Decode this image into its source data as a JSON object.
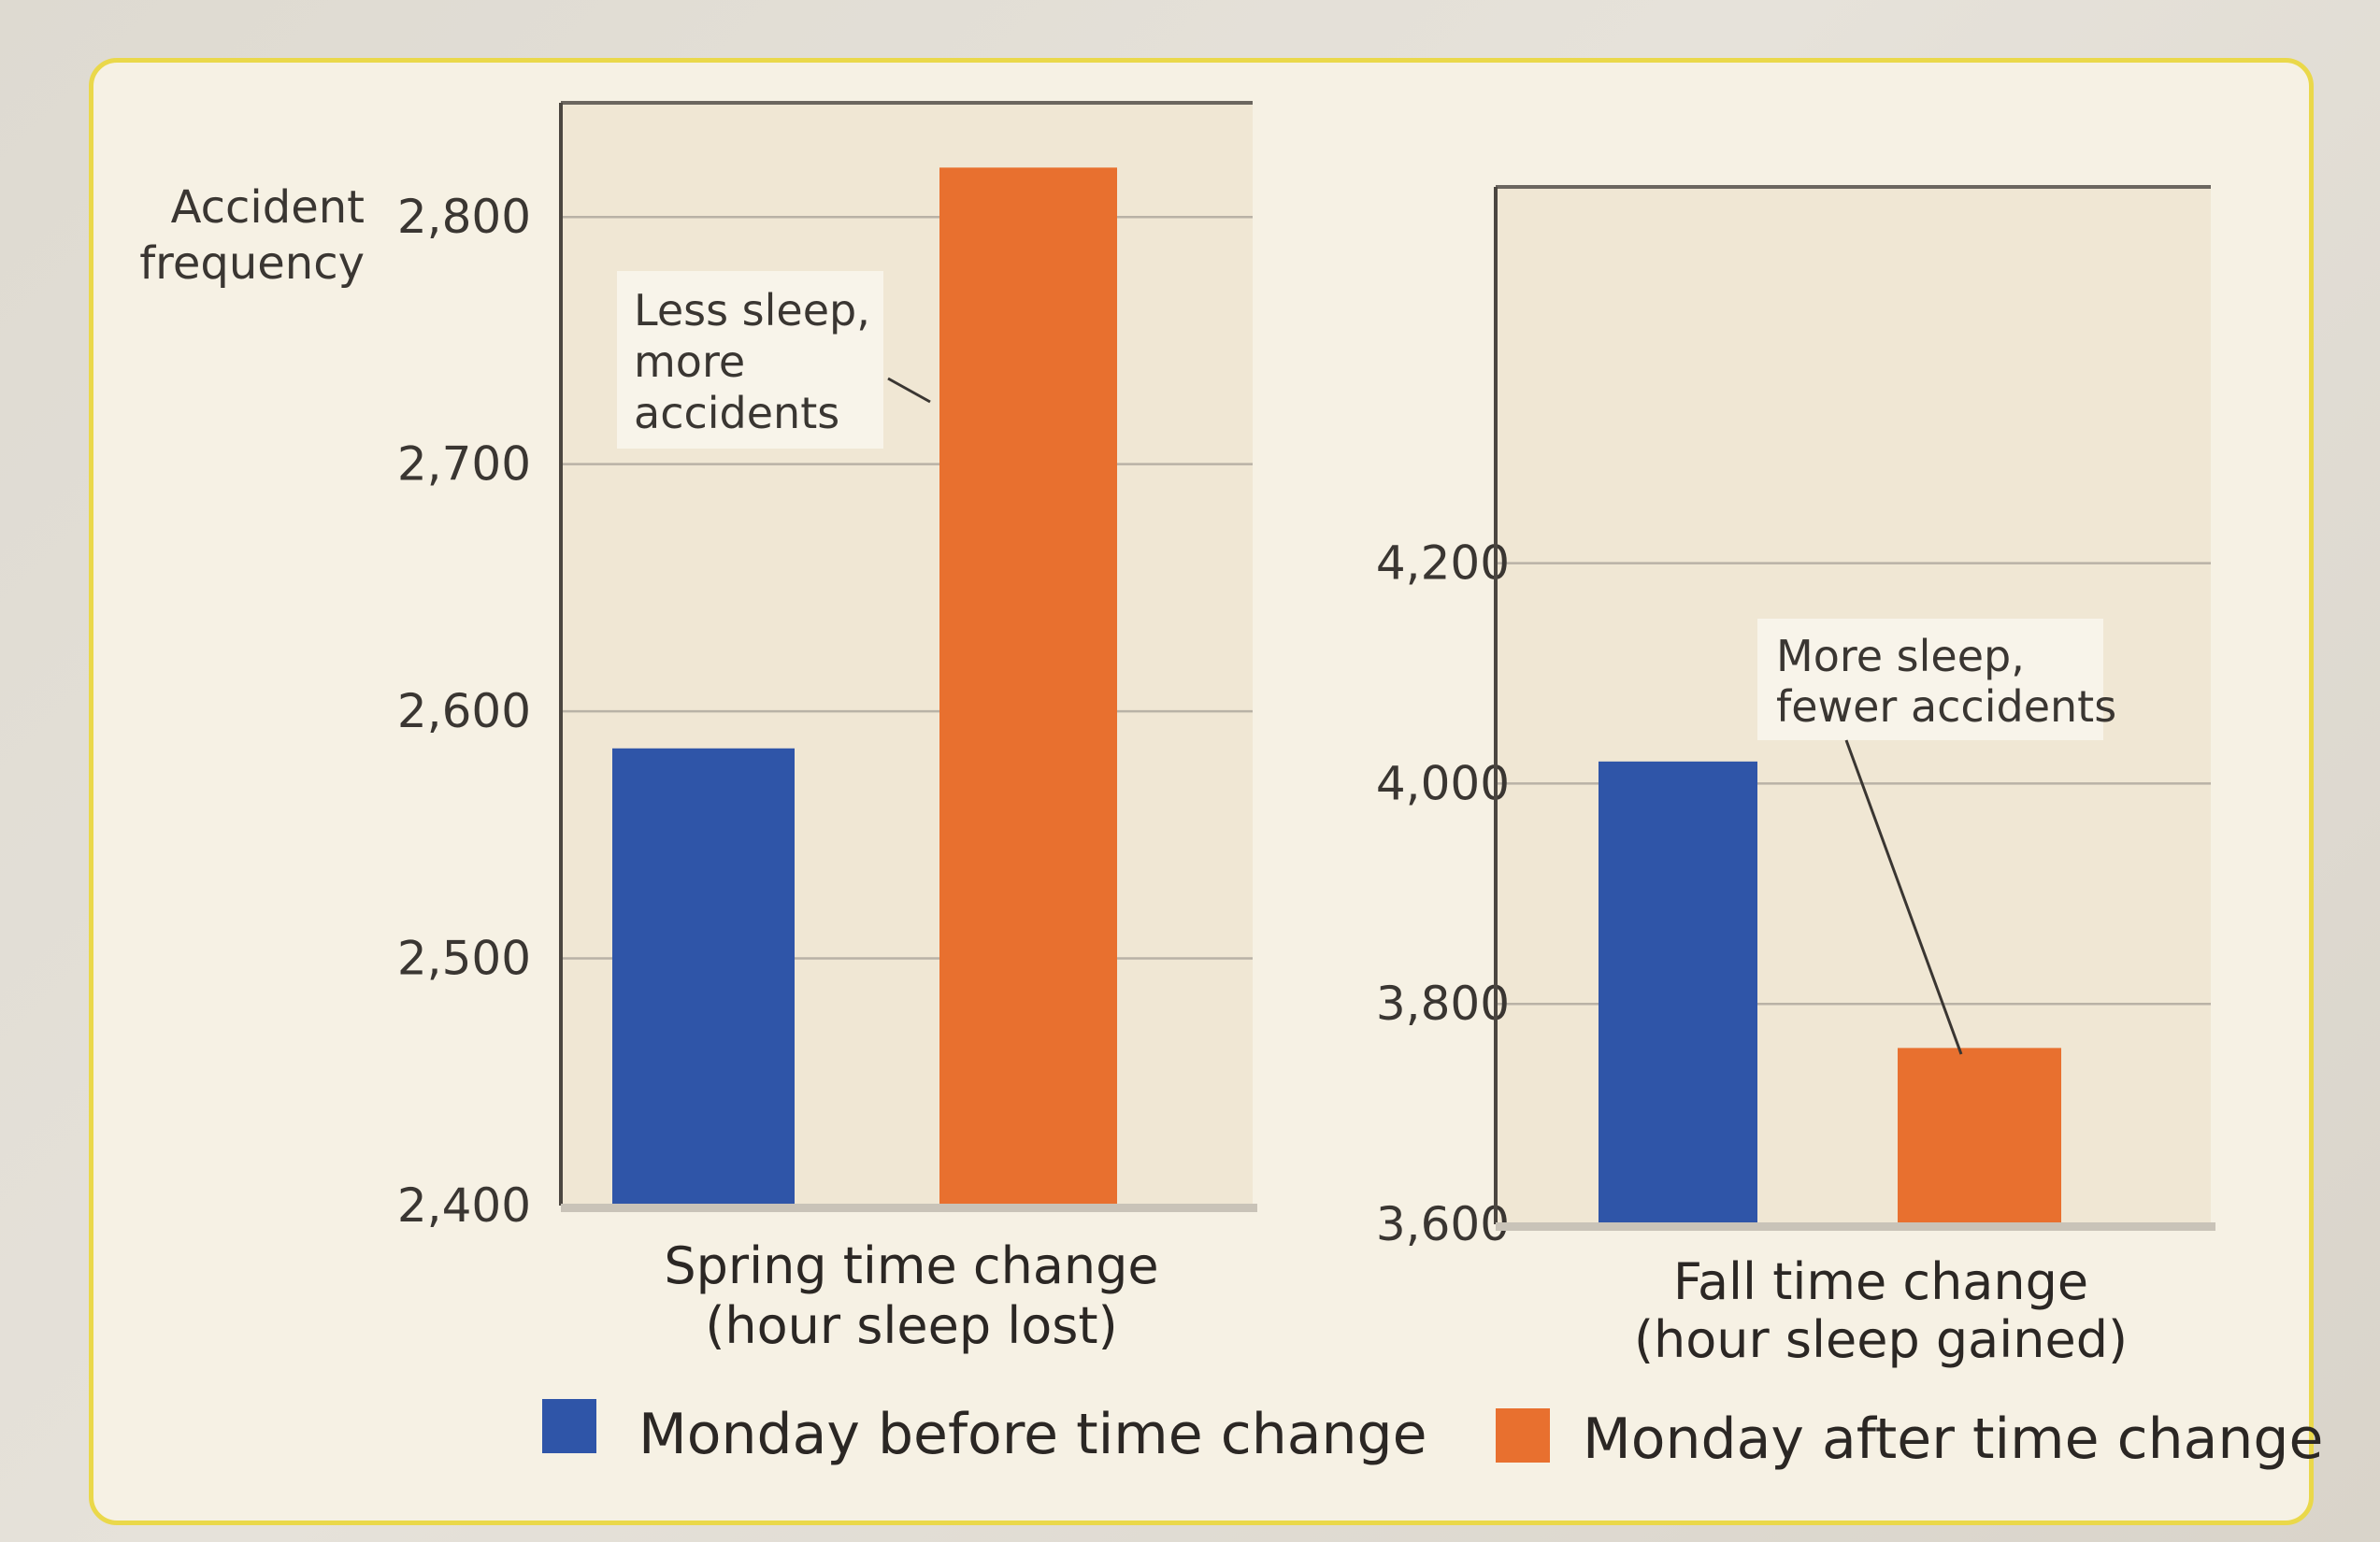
{
  "chart_data": {
    "type": "bar",
    "ylabel_lines": [
      "Accident",
      "frequency"
    ],
    "legend": [
      {
        "label": "Monday before time change",
        "color": "#2f55a8"
      },
      {
        "label": "Monday after time change",
        "color": "#e8702f"
      }
    ],
    "legend_position": "bottom",
    "grid": true,
    "panels": [
      {
        "xlabel_lines": [
          "Spring time change",
          "(hour sleep lost)"
        ],
        "ylim": [
          2400,
          2850
        ],
        "yticks": [
          2400,
          2500,
          2600,
          2700,
          2800
        ],
        "ytick_labels": [
          "2,400",
          "2,500",
          "2,600",
          "2,700",
          "2,800"
        ],
        "series": [
          {
            "name": "Monday before time change",
            "value": 2585
          },
          {
            "name": "Monday after time change",
            "value": 2820
          }
        ],
        "annotation_lines": [
          "Less sleep,",
          "more",
          "accidents"
        ]
      },
      {
        "xlabel_lines": [
          "Fall time change",
          "(hour sleep gained)"
        ],
        "ylim": [
          3600,
          4550
        ],
        "yticks": [
          3600,
          3800,
          4000,
          4200
        ],
        "ytick_labels": [
          "3,600",
          "3,800",
          "4,000",
          "4,200"
        ],
        "series": [
          {
            "name": "Monday before time change",
            "value": 4020
          },
          {
            "name": "Monday after time change",
            "value": 3760
          }
        ],
        "annotation_lines": [
          "More sleep,",
          "fewer accidents"
        ]
      }
    ]
  }
}
